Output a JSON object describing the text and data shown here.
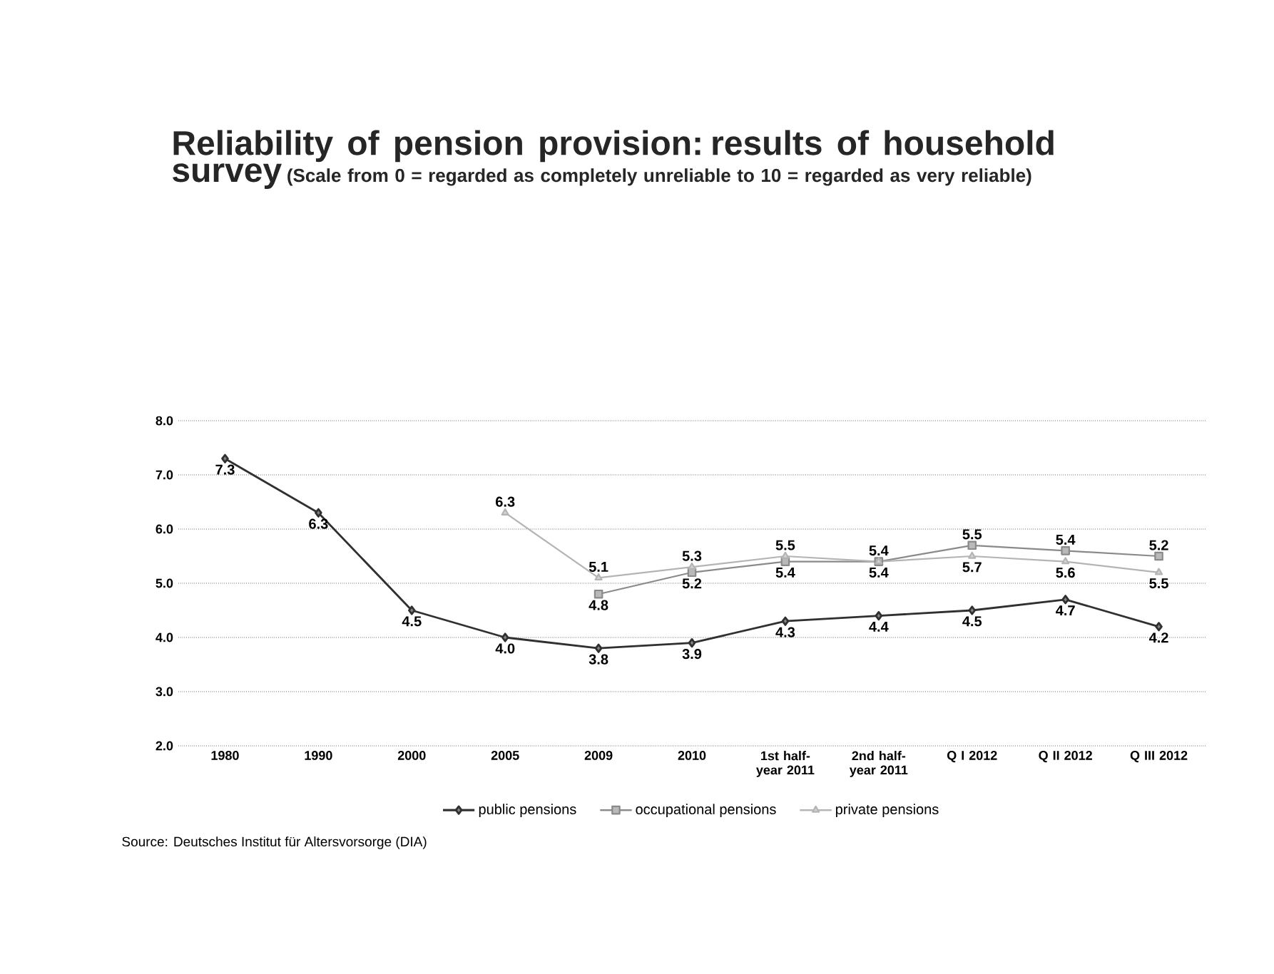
{
  "chart_data": {
    "type": "line",
    "title": "Reliability of pension provision: results of household survey",
    "subtitle": "(Scale from 0 = regarded as completely unreliable to 10 = regarded as very reliable)",
    "categories": [
      "1980",
      "1990",
      "2000",
      "2005",
      "2009",
      "2010",
      "1st half-year 2011",
      "2nd half-year 2011",
      "Q I 2012",
      "Q II 2012",
      "Q III 2012"
    ],
    "series": [
      {
        "name": "public pensions",
        "color": "#303030",
        "marker": "diamond",
        "values": [
          7.3,
          6.3,
          4.5,
          4.0,
          3.8,
          3.9,
          4.3,
          4.4,
          4.5,
          4.7,
          4.2
        ],
        "value_labels": [
          "7.3",
          "6.3",
          "4.5",
          "4.0",
          "3.8",
          "3.9",
          "4.3",
          "4.4",
          "4.5",
          "4.7",
          "4.2"
        ]
      },
      {
        "name": "occupational pensions",
        "color": "#8a8a8a",
        "marker": "square",
        "values": [
          null,
          null,
          null,
          null,
          4.8,
          5.2,
          5.4,
          5.4,
          5.7,
          5.6,
          5.5
        ],
        "value_labels": [
          null,
          null,
          null,
          null,
          "4.8",
          "5.2",
          "5.4",
          "5.4",
          "5.7",
          "5.6",
          "5.5"
        ]
      },
      {
        "name": "private pensions",
        "color": "#b4b4b4",
        "marker": "triangle",
        "values": [
          null,
          null,
          null,
          6.3,
          5.1,
          5.3,
          5.5,
          5.4,
          5.5,
          5.4,
          5.2
        ],
        "value_labels": [
          null,
          null,
          null,
          "6.3",
          "5.1",
          "5.3",
          "5.5",
          "5.4",
          "5.5",
          "5.4",
          "5.2"
        ]
      }
    ],
    "ylim": [
      2,
      8
    ],
    "yticks": [
      {
        "value": 2,
        "label": "2.0"
      },
      {
        "value": 3,
        "label": "3.0"
      },
      {
        "value": 4,
        "label": "4.0"
      },
      {
        "value": 5,
        "label": "5.0"
      },
      {
        "value": 6,
        "label": "6.0"
      },
      {
        "value": 7,
        "label": "7.0"
      },
      {
        "value": 8,
        "label": "8.0"
      }
    ],
    "grid": "y",
    "legend": "bottom",
    "line_style": "solid",
    "annotations": [
      "Source: Deutsches Institut für Altersvorsorge (DIA)"
    ]
  }
}
